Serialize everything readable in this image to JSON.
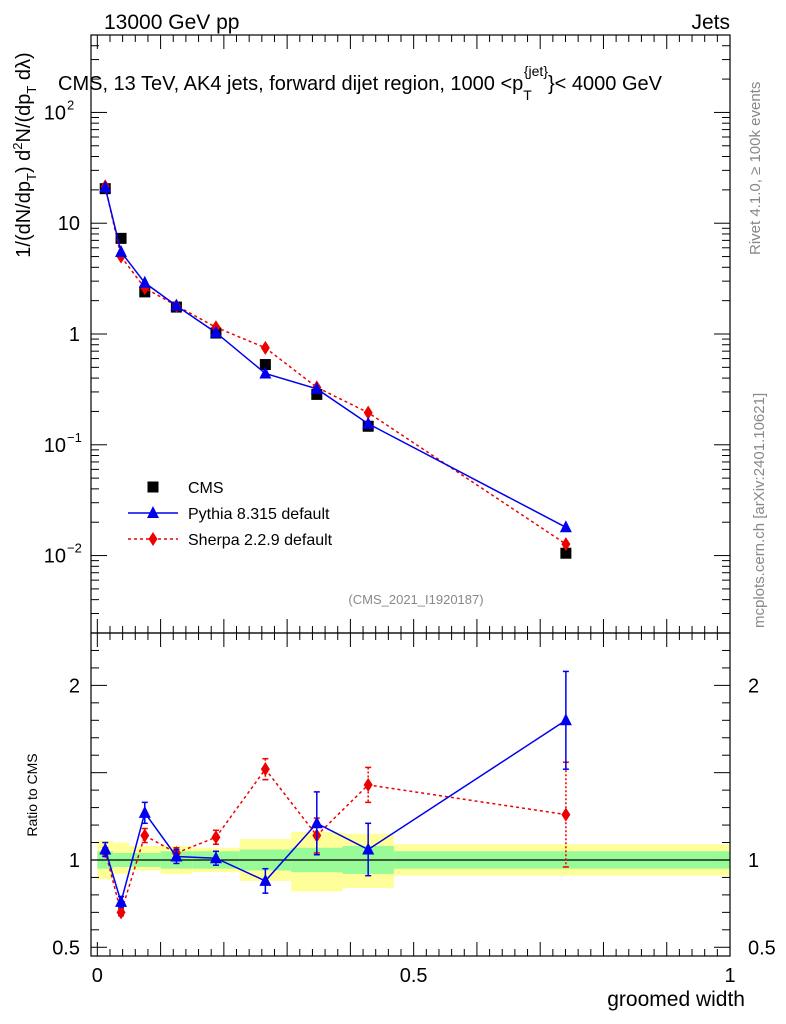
{
  "header": {
    "left": "13000 GeV pp",
    "right": "Jets"
  },
  "side": {
    "rivet": "Rivet 4.1.0, ≥ 100k events",
    "mcplots": "mcplots.cern.ch [arXiv:2401.10621]"
  },
  "watermark": "(CMS_2021_I1920187)",
  "colors": {
    "cms": "#000000",
    "pythia": "#0000ee",
    "sherpa": "#ee0000",
    "band_stat": "#98fb98",
    "band_total": "#ffff99"
  },
  "chart_data": [
    {
      "type": "scatter",
      "panel": "main",
      "title": "CMS, 13 TeV, AK4 jets, forward dijet region, 1000 <p_T^{jet}< 4000 GeV",
      "title_parts": {
        "main": "CMS, 13 TeV, AK4 jets, forward dijet region, 1000 <p",
        "sub": "T",
        "sup": "{jet}",
        "end": "}< 4000 GeV"
      },
      "ylabel": "1/(dN/dp_T) d²N/(dp_T dλ)",
      "yscale": "log",
      "ylim": [
        0.002,
        500
      ],
      "xlim": [
        -0.01,
        1.0
      ],
      "y_ticks": [
        {
          "v": 100,
          "label": "10",
          "exp": "2"
        },
        {
          "v": 10,
          "label": "10",
          "exp": ""
        },
        {
          "v": 1,
          "label": "1",
          "exp": ""
        },
        {
          "v": 0.1,
          "label": "10",
          "exp": "−1"
        },
        {
          "v": 0.01,
          "label": "10",
          "exp": "−2"
        }
      ],
      "legend": [
        {
          "key": "cms",
          "label": "CMS"
        },
        {
          "key": "pythia",
          "label": "Pythia 8.315 default"
        },
        {
          "key": "sherpa",
          "label": "Sherpa 2.2.9 default"
        }
      ],
      "legend_position": "lower-left",
      "x": [
        0.0125,
        0.0375,
        0.075,
        0.125,
        0.1875,
        0.2656,
        0.3469,
        0.4281,
        0.7406
      ],
      "series": [
        {
          "name": "CMS",
          "key": "cms",
          "values": [
            20.5,
            7.3,
            2.4,
            1.75,
            1.02,
            0.53,
            0.285,
            0.147,
            0.0105
          ]
        },
        {
          "name": "Pythia 8.315 default",
          "key": "pythia",
          "values": [
            21.0,
            5.5,
            2.9,
            1.8,
            1.03,
            0.44,
            0.32,
            0.155,
            0.018
          ]
        },
        {
          "name": "Sherpa 2.2.9 default",
          "key": "sherpa",
          "values": [
            21.5,
            5.0,
            2.6,
            1.8,
            1.15,
            0.75,
            0.33,
            0.195,
            0.0127
          ]
        }
      ]
    },
    {
      "type": "scatter",
      "panel": "ratio",
      "ylabel": "Ratio to CMS",
      "xlabel": "groomed width",
      "ylim": [
        0.45,
        2.3
      ],
      "xlim": [
        -0.01,
        1.0
      ],
      "y_ticks": [
        {
          "v": 0.5,
          "label": "0.5"
        },
        {
          "v": 1,
          "label": "1"
        },
        {
          "v": 2,
          "label": "2"
        }
      ],
      "x_ticks": [
        {
          "v": 0,
          "label": "0"
        },
        {
          "v": 0.5,
          "label": "0.5"
        },
        {
          "v": 1,
          "label": "1"
        }
      ],
      "bin_edges": [
        0,
        0.025,
        0.05,
        0.1,
        0.15,
        0.225,
        0.3063,
        0.3875,
        0.4688,
        1.0
      ],
      "band_stat": [
        [
          0.95,
          1.05
        ],
        [
          0.96,
          1.04
        ],
        [
          0.96,
          1.04
        ],
        [
          0.95,
          1.05
        ],
        [
          0.95,
          1.05
        ],
        [
          0.94,
          1.06
        ],
        [
          0.93,
          1.07
        ],
        [
          0.92,
          1.08
        ],
        [
          0.95,
          1.05
        ]
      ],
      "band_total": [
        [
          0.89,
          1.11
        ],
        [
          0.92,
          1.1
        ],
        [
          0.94,
          1.08
        ],
        [
          0.92,
          1.08
        ],
        [
          0.93,
          1.07
        ],
        [
          0.88,
          1.12
        ],
        [
          0.82,
          1.16
        ],
        [
          0.84,
          1.15
        ],
        [
          0.91,
          1.09
        ]
      ],
      "x": [
        0.0125,
        0.0375,
        0.075,
        0.125,
        0.1875,
        0.2656,
        0.3469,
        0.4281,
        0.7406
      ],
      "series": [
        {
          "name": "Pythia 8.315 default",
          "key": "pythia",
          "values": [
            1.06,
            0.76,
            1.27,
            1.02,
            1.01,
            0.88,
            1.21,
            1.06,
            1.8
          ],
          "err": [
            0.04,
            0.03,
            0.06,
            0.04,
            0.04,
            0.07,
            0.18,
            0.15,
            0.28
          ]
        },
        {
          "name": "Sherpa 2.2.9 default",
          "key": "sherpa",
          "values": [
            1.05,
            0.7,
            1.14,
            1.04,
            1.13,
            1.52,
            1.14,
            1.43,
            1.26
          ],
          "err": [
            0.02,
            0.02,
            0.04,
            0.03,
            0.04,
            0.06,
            0.1,
            0.1,
            0.3
          ]
        }
      ]
    }
  ]
}
